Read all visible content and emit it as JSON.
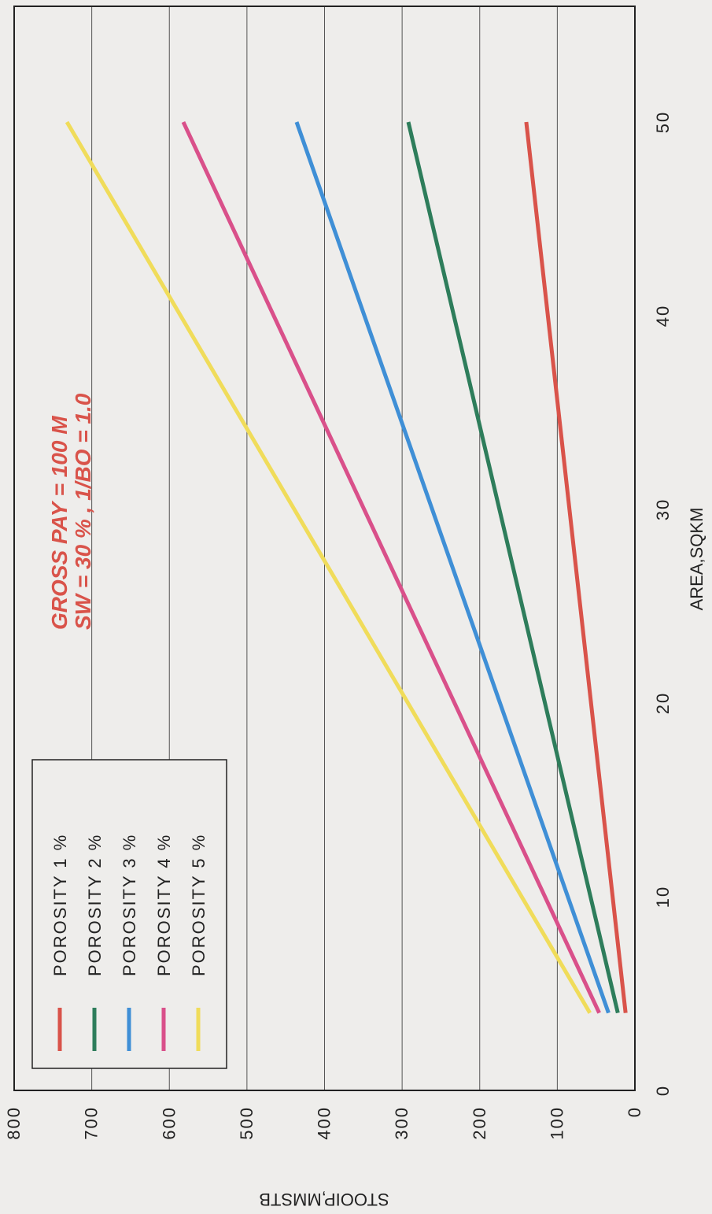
{
  "chart_data": {
    "type": "line",
    "orientation": "rotated-90-clockwise",
    "xlabel": "AREA,SQKM",
    "ylabel": "STOOIP,MMSTB",
    "xlim": [
      0,
      55
    ],
    "ylim": [
      0,
      800
    ],
    "x_ticks": [
      "0",
      "10",
      "20",
      "30",
      "40",
      "50"
    ],
    "y_ticks": [
      "0",
      "100",
      "200",
      "300",
      "400",
      "500",
      "600",
      "700",
      "800"
    ],
    "grid": "horizontal at y ticks",
    "legend_position": "top-left",
    "annotation": [
      "GROSS PAY = 100 M",
      "SW = 30 % , 1/BO = 1.0"
    ],
    "series": [
      {
        "name": "POROSITY 1 %",
        "color": "#d9534a",
        "x": [
          4,
          50
        ],
        "y": [
          12,
          140
        ]
      },
      {
        "name": "POROSITY 2 %",
        "color": "#2e7d5b",
        "x": [
          4,
          50
        ],
        "y": [
          22,
          292
        ]
      },
      {
        "name": "POROSITY 3 %",
        "color": "#3f8fd6",
        "x": [
          4,
          50
        ],
        "y": [
          34,
          436
        ]
      },
      {
        "name": "POROSITY 4 %",
        "color": "#d9508a",
        "x": [
          4,
          50
        ],
        "y": [
          46,
          582
        ]
      },
      {
        "name": "POROSITY 5 %",
        "color": "#f0dc5a",
        "x": [
          4,
          50
        ],
        "y": [
          58,
          732
        ]
      }
    ]
  }
}
